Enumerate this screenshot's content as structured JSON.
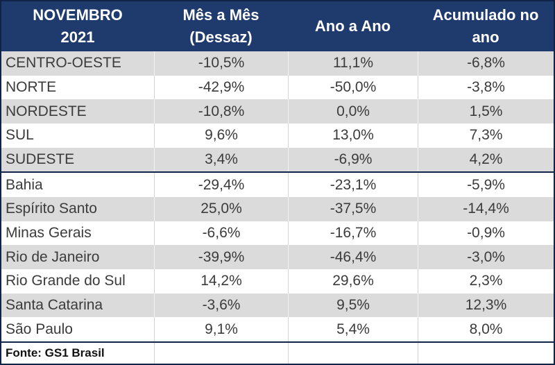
{
  "header": {
    "cols": [
      {
        "id": "period",
        "lines": [
          "NOVEMBRO",
          "2021"
        ]
      },
      {
        "id": "mom",
        "lines": [
          "Mês a Mês",
          "(Dessaz)"
        ]
      },
      {
        "id": "yoy",
        "lines": [
          "Ano a Ano"
        ]
      },
      {
        "id": "ytd",
        "lines": [
          "Acumulado no",
          "ano"
        ]
      }
    ]
  },
  "rows": [
    {
      "name": "CENTRO-OESTE",
      "mom": "-10,5%",
      "yoy": "11,1%",
      "ytd": "-6,8%"
    },
    {
      "name": "NORTE",
      "mom": "-42,9%",
      "yoy": "-50,0%",
      "ytd": "-3,8%"
    },
    {
      "name": "NORDESTE",
      "mom": "-10,8%",
      "yoy": "0,0%",
      "ytd": "1,5%"
    },
    {
      "name": "SUL",
      "mom": "9,6%",
      "yoy": "13,0%",
      "ytd": "7,3%"
    },
    {
      "name": "SUDESTE",
      "mom": "3,4%",
      "yoy": "-6,9%",
      "ytd": "4,2%"
    },
    {
      "name": "Bahia",
      "mom": "-29,4%",
      "yoy": "-23,1%",
      "ytd": "-5,9%"
    },
    {
      "name": "Espírito Santo",
      "mom": "25,0%",
      "yoy": "-37,5%",
      "ytd": "-14,4%"
    },
    {
      "name": "Minas Gerais",
      "mom": "-6,6%",
      "yoy": "-16,7%",
      "ytd": "-0,9%"
    },
    {
      "name": "Rio de Janeiro",
      "mom": "-39,9%",
      "yoy": "-46,4%",
      "ytd": "-3,0%"
    },
    {
      "name": "Rio Grande do Sul",
      "mom": "14,2%",
      "yoy": "29,6%",
      "ytd": "2,3%"
    },
    {
      "name": "Santa Catarina",
      "mom": "-3,6%",
      "yoy": "9,5%",
      "ytd": "12,3%"
    },
    {
      "name": "São Paulo",
      "mom": "9,1%",
      "yoy": "5,4%",
      "ytd": "8,0%"
    }
  ],
  "footer": {
    "source": "Fonte: GS1 Brasil"
  },
  "colors": {
    "header_bg": "#1f3a6d",
    "header_text": "#ffffff",
    "stripe_gray": "#dbdbdb",
    "body_text": "#3b3b3b",
    "dark_border": "#0f2446"
  },
  "chart_data": {
    "type": "table",
    "title": "NOVEMBRO 2021",
    "columns": [
      "NOVEMBRO 2021",
      "Mês a Mês (Dessaz)",
      "Ano a Ano",
      "Acumulado no ano"
    ],
    "units": "percent",
    "series": [
      {
        "name": "Mês a Mês (Dessaz)",
        "values": [
          -10.5,
          -42.9,
          -10.8,
          9.6,
          3.4,
          -29.4,
          25.0,
          -6.6,
          -39.9,
          14.2,
          -3.6,
          9.1
        ]
      },
      {
        "name": "Ano a Ano",
        "values": [
          11.1,
          -50.0,
          0.0,
          13.0,
          -6.9,
          -23.1,
          -37.5,
          -16.7,
          -46.4,
          29.6,
          9.5,
          5.4
        ]
      },
      {
        "name": "Acumulado no ano",
        "values": [
          -6.8,
          -3.8,
          1.5,
          7.3,
          4.2,
          -5.9,
          -14.4,
          -0.9,
          -3.0,
          2.3,
          12.3,
          8.0
        ]
      }
    ],
    "categories": [
      "CENTRO-OESTE",
      "NORTE",
      "NORDESTE",
      "SUL",
      "SUDESTE",
      "Bahia",
      "Espírito Santo",
      "Minas Gerais",
      "Rio de Janeiro",
      "Rio Grande do Sul",
      "Santa Catarina",
      "São Paulo"
    ],
    "source": "Fonte: GS1 Brasil"
  }
}
